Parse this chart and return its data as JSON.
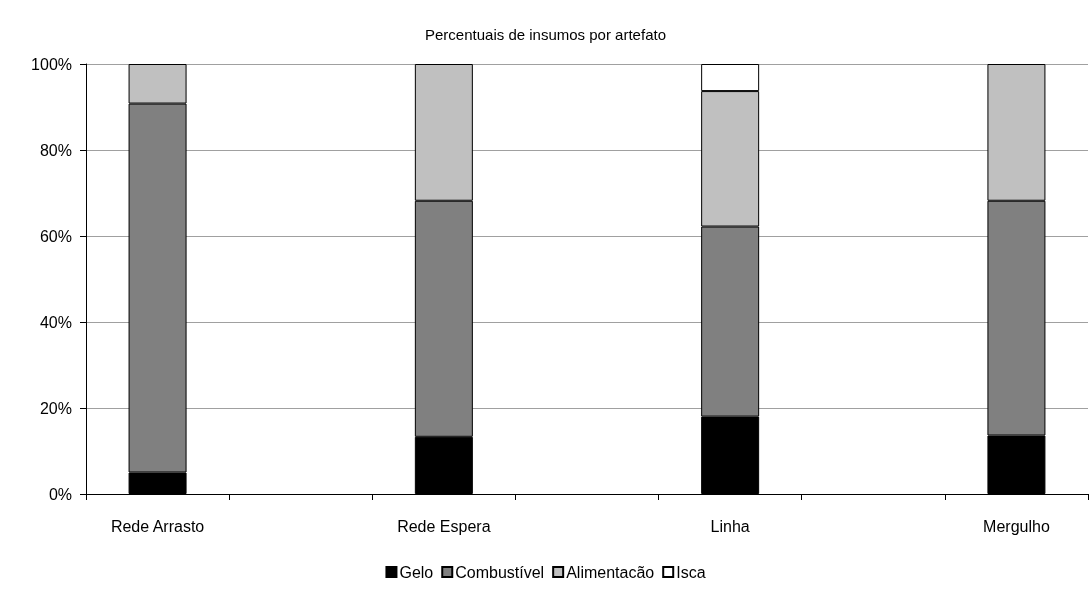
{
  "chart_data": {
    "type": "bar",
    "title": "Percentuais de insumos por artefato",
    "categories": [
      "Rede Arrasto",
      null,
      "Rede Espera",
      null,
      "Linha",
      null,
      "Mergulho"
    ],
    "series": [
      {
        "name": "Gelo",
        "color": "#000000",
        "values": [
          5.0,
          null,
          13.3,
          null,
          18.0,
          null,
          13.6
        ]
      },
      {
        "name": "Combustível",
        "color": "#808080",
        "values": [
          85.8,
          null,
          54.9,
          null,
          44.2,
          null,
          54.6
        ]
      },
      {
        "name": "Alimentacão",
        "color": "#c0c0c0",
        "values": [
          9.2,
          null,
          31.8,
          null,
          31.5,
          null,
          31.8
        ]
      },
      {
        "name": "Isca",
        "color": "#ffffff",
        "values": [
          null,
          null,
          null,
          null,
          6.3,
          null,
          null
        ]
      }
    ],
    "stacked": true,
    "ylim": [
      0,
      100
    ],
    "yticks": [
      {
        "value": 0,
        "label": "0%"
      },
      {
        "value": 20,
        "label": "20%"
      },
      {
        "value": 40,
        "label": "40%"
      },
      {
        "value": 60,
        "label": "60%"
      },
      {
        "value": 80,
        "label": "80%"
      },
      {
        "value": 100,
        "label": "100%"
      }
    ],
    "grid": "y",
    "legend": "bottom"
  }
}
